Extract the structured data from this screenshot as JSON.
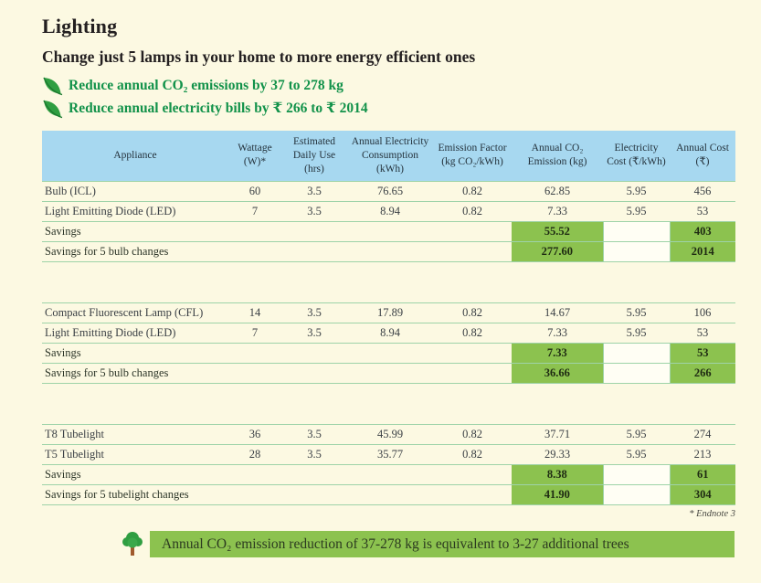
{
  "header": {
    "title": "Lighting",
    "subtitle": "Change just 5 lamps in your home to more energy efficient ones",
    "bullets": [
      {
        "icon": "leaf-icon",
        "text": "Reduce annual CO₂ emissions by 37 to 278 kg"
      },
      {
        "icon": "leaf-icon",
        "text": "Reduce annual electricity bills by ₹ 266 to ₹ 2014"
      }
    ]
  },
  "table": {
    "columns": [
      "Appliance",
      "Wattage (W)*",
      "Estimated Daily Use (hrs)",
      "Annual Electricity Consumption (kWh)",
      "Emission Factor (kg CO₂/kWh)",
      "Annual CO₂ Emission (kg)",
      "Electricity Cost (₹/kWh)",
      "Annual Cost (₹)"
    ],
    "groups": [
      {
        "rows": [
          {
            "type": "data",
            "cells": [
              "Bulb (ICL)",
              "60",
              "3.5",
              "76.65",
              "0.82",
              "62.85",
              "5.95",
              "456"
            ]
          },
          {
            "type": "data",
            "cells": [
              "Light Emitting Diode (LED)",
              "7",
              "3.5",
              "8.94",
              "0.82",
              "7.33",
              "5.95",
              "53"
            ]
          },
          {
            "type": "savings",
            "label": "Savings",
            "co2": "55.52",
            "cost": "403"
          },
          {
            "type": "savings",
            "label": "Savings for 5 bulb changes",
            "co2": "277.60",
            "cost": "2014"
          }
        ]
      },
      {
        "rows": [
          {
            "type": "data",
            "cells": [
              "Compact Fluorescent Lamp (CFL)",
              "14",
              "3.5",
              "17.89",
              "0.82",
              "14.67",
              "5.95",
              "106"
            ]
          },
          {
            "type": "data",
            "cells": [
              "Light Emitting Diode (LED)",
              "7",
              "3.5",
              "8.94",
              "0.82",
              "7.33",
              "5.95",
              "53"
            ]
          },
          {
            "type": "savings",
            "label": "Savings",
            "co2": "7.33",
            "cost": "53"
          },
          {
            "type": "savings",
            "label": "Savings for 5 bulb changes",
            "co2": "36.66",
            "cost": "266"
          }
        ]
      },
      {
        "rows": [
          {
            "type": "data",
            "cells": [
              "T8 Tubelight",
              "36",
              "3.5",
              "45.99",
              "0.82",
              "37.71",
              "5.95",
              "274"
            ]
          },
          {
            "type": "data",
            "cells": [
              "T5 Tubelight",
              "28",
              "3.5",
              "35.77",
              "0.82",
              "29.33",
              "5.95",
              "213"
            ]
          },
          {
            "type": "savings",
            "label": "Savings",
            "co2": "8.38",
            "cost": "61"
          },
          {
            "type": "savings",
            "label": "Savings for 5 tubelight changes",
            "co2": "41.90",
            "cost": "304"
          }
        ]
      }
    ],
    "endnote": "* Endnote 3"
  },
  "banner": {
    "icon": "tree-icon",
    "text": "Annual CO₂ emission reduction of 37-278 kg is equivalent to 3-27 additional trees"
  },
  "colors": {
    "page_bg": "#fcf9e2",
    "header_blue": "#a7d8f0",
    "savings_green": "#8cc24f",
    "text_green": "#12924a",
    "row_line_green": "#9ed3a8",
    "title_text": "#231f20"
  }
}
